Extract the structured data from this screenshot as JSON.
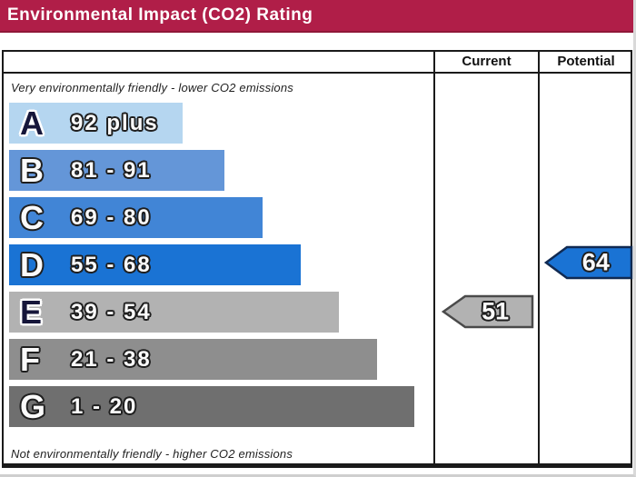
{
  "header": {
    "title": "Environmental Impact (CO2) Rating",
    "banner_color": "#b01e48",
    "title_color": "#ffffff"
  },
  "table": {
    "columns": [
      {
        "label": "Current"
      },
      {
        "label": "Potential"
      }
    ]
  },
  "captions": {
    "top": "Very environmentally friendly - lower CO2 emissions",
    "bottom": "Not environmentally friendly - higher CO2 emissions"
  },
  "bands": [
    {
      "letter": "A",
      "range": "92 plus",
      "color": "#b5d6f0",
      "width_pct": 41,
      "letter_style": "dark"
    },
    {
      "letter": "B",
      "range": "81 - 91",
      "color": "#6496d8",
      "width_pct": 51,
      "letter_style": "light"
    },
    {
      "letter": "C",
      "range": "69 - 80",
      "color": "#4185d6",
      "width_pct": 60,
      "letter_style": "light"
    },
    {
      "letter": "D",
      "range": "55 - 68",
      "color": "#1a73d4",
      "width_pct": 69,
      "letter_style": "light"
    },
    {
      "letter": "E",
      "range": "39 - 54",
      "color": "#b2b2b2",
      "width_pct": 78,
      "letter_style": "dark"
    },
    {
      "letter": "F",
      "range": "21 - 38",
      "color": "#8e8e8e",
      "width_pct": 87,
      "letter_style": "light"
    },
    {
      "letter": "G",
      "range": "1 - 20",
      "color": "#6f6f6f",
      "width_pct": 96,
      "letter_style": "light"
    }
  ],
  "ratings": {
    "current": {
      "value": "51",
      "band": "E",
      "color": "#b2b2b2",
      "border": "#4a4a4a"
    },
    "potential": {
      "value": "64",
      "band": "D",
      "color": "#1a73d4",
      "border": "#102a52"
    }
  },
  "chart_data": {
    "type": "bar",
    "title": "Environmental Impact (CO2) Rating",
    "categories": [
      "A",
      "B",
      "C",
      "D",
      "E",
      "F",
      "G"
    ],
    "band_ranges": [
      "92 plus",
      "81 - 91",
      "69 - 80",
      "55 - 68",
      "39 - 54",
      "21 - 38",
      "1 - 20"
    ],
    "band_colors": [
      "#b5d6f0",
      "#6496d8",
      "#4185d6",
      "#1a73d4",
      "#b2b2b2",
      "#8e8e8e",
      "#6f6f6f"
    ],
    "bar_relative_widths": [
      0.41,
      0.51,
      0.6,
      0.69,
      0.78,
      0.87,
      0.96
    ],
    "annotations": [
      {
        "label": "Current",
        "value": 51,
        "band": "E"
      },
      {
        "label": "Potential",
        "value": 64,
        "band": "D"
      }
    ],
    "top_label": "Very environmentally friendly - lower CO2 emissions",
    "bottom_label": "Not environmentally friendly - higher CO2 emissions",
    "value_scale": [
      1,
      100
    ],
    "legend_position": "right-columns"
  }
}
